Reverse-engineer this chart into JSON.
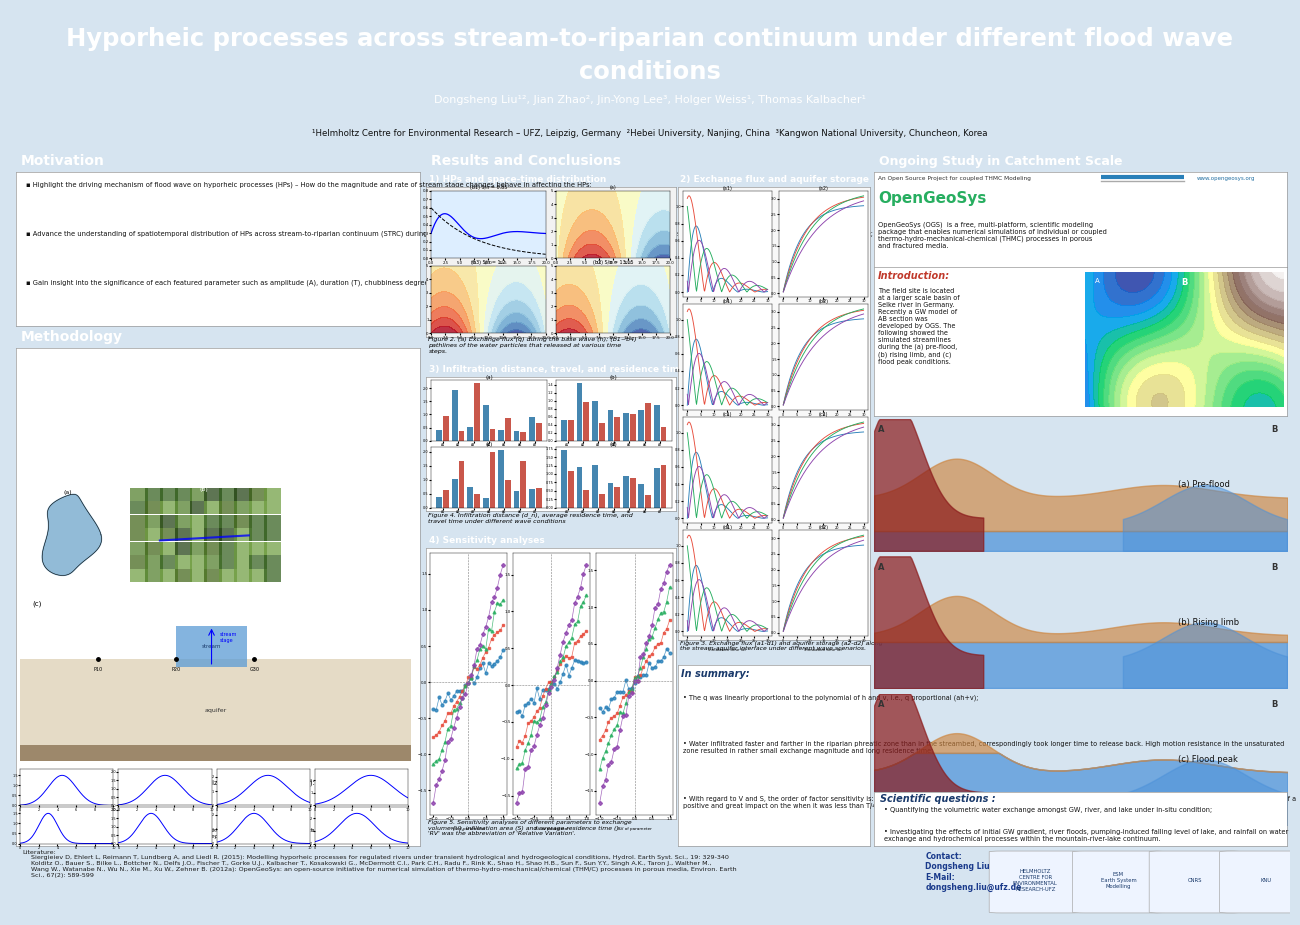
{
  "title_line1": "Hyporheic processes across stream-to-riparian continuum under different flood wave",
  "title_line2": "conditions",
  "authors": "Dongsheng Liu¹², Jian Zhao², Jin-Yong Lee³, Holger Weiss¹, Thomas Kalbacher¹",
  "affiliations": "¹Helmholtz Centre for Environmental Research – UFZ, Leipzig, Germany  ²Hebei University, Nanjing, China  ³Kangwon National University, Chuncheon, Korea",
  "header_bg": "#1a5276",
  "header_text": "#ffffff",
  "panel_bg": "#ffffff",
  "poster_bg": "#d6e4f0",
  "section_header_bg": "#2980b9",
  "section_header_text": "#ffffff",
  "subsection_header_bg": "#5dade2",
  "subsection_header_text": "#ffffff",
  "ongoing_header_bg": "#2c3e50",
  "motivation_text": [
    "Highlight the driving mechanism of flood wave on hyporheic processes (HPs) – How do the magnitude and rate of stream stage changes behave in affecting the HPs;",
    "Advance the understanding of spatiotemporal distribution of HPs across stream-to-riparian continuum (STRC) during a single flood wave, i.e., elaborate the otherness among different zones: streambed, riparian phreatic zone, and unsaturated zone;",
    "Gain insight into the significance of each featured parameter such as amplitude (A), duration (T), chubbiness degree (r), and skewness (tp) of a wave to the HPs."
  ],
  "methodology_title": "Methodology",
  "motivation_title": "Motivation",
  "results_title": "Results and Conclusions",
  "ongoing_title": "Ongoing Study in Catchment Scale",
  "footer_bg": "#dce8f5",
  "lit_text": "Literature:\n    Siergieiev D, Ehlert L, Reimann T, Lundberg A, and Liedl R. (2015): Modelling hyporheic processes for regulated rivers under transient hydrological and hydrogeological conditions, Hydrol. Earth Syst. Sci., 19: 329-340\n    Kolditz O., Bauer S., Bilke L., Bottcher N., Delfs J.O., Fischer T., Gorke U.J., Kalbacher T., Kosakowski G., McDermott C.I., Park C.H., Radu F., Rink K., Shao H., Shao H.B., Sun F., Sun Y.Y., Singh A.K., Taron J., Walther M.,\n    Wang W., Watanabe N., Wu N., Xie M., Xu W., Zehner B. (2012a): OpenGeoSys: an open-source initiative for numerical simulation of thermo-hydro-mechanical/chemical (THM/C) processes in porous media, Environ. Earth\n    Sci., 67(2): 589-599",
  "contact_text": "Contact:\nDongsheng Liu\nE-Mail:\ndongsheng.liu@ufz.de",
  "results_subsections": [
    "1) HPs and space-time distribution",
    "3) Infiltration distance, travel, and residence time",
    "4) Sensitivity analyses"
  ],
  "results_subsection2": "2) Exchange flux and aquifer storage",
  "in_summary_title": "In summary:",
  "in_summary_text": [
    "The q was linearly proportional to the polynomial of h and v, i.e., q proportional (ah+v);",
    "Water infiltrated faster and farther in the riparian phreatic zone than in the streambed, correspondingly took longer time to release back. High motion resistance in the unsaturated zone resulted in rather small exchange magnitude and long residence time;",
    "With regard to V and S, the order of factor sensitivity is: A (positively) > T (positively) > r (negatively) > tp (positively). To T outperformed others, followed by r, and then A. tp was of a positive and great impact on the when it was less than T/4, and a negative and low impact otherwise."
  ],
  "opengeosys_text": "OpenGeoSys (OGS)  is a free, multi-platform, scientific modeling\npackage that enables numerical simulations of individual or coupled\nthermo-hydro-mechanical-chemical (THMC) processes in porous\nand fractured media.",
  "intro_text": "The field site is located\nat a larger scale basin of\nSelke river in Germany.\nRecently a GW model of\nAB section was\ndeveloped by OGS. The\nfollowing showed the\nsimulated streamlines\nduring the (a) pre-flood,\n(b) rising limb, and (c)\nflood peak conditions.",
  "scientific_questions_title": "Scientific questions :",
  "scientific_questions_text": [
    "Quantifying the volumetric water exchange amongst GW, river, and lake under in-situ condition;",
    "Investigating the effects of initial GW gradient, river floods, pumping-induced falling level of lake, and rainfall on water exchange and hydrochemical processes within the mountain-river-lake continuum."
  ]
}
